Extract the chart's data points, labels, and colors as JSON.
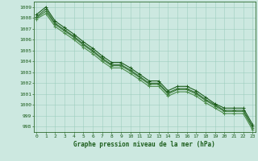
{
  "title": "Graphe pression niveau de la mer (hPa)",
  "hours": [
    0,
    1,
    2,
    3,
    4,
    5,
    6,
    7,
    8,
    9,
    10,
    11,
    12,
    13,
    14,
    15,
    16,
    17,
    18,
    19,
    20,
    21,
    22,
    23
  ],
  "series": [
    [
      1008.1,
      1008.8,
      1007.5,
      1006.9,
      1006.3,
      1005.6,
      1005.0,
      1004.3,
      1003.7,
      1003.7,
      1003.2,
      1002.6,
      1002.0,
      1002.0,
      1001.1,
      1001.5,
      1001.5,
      1001.1,
      1000.5,
      1000.0,
      999.5,
      999.5,
      999.5,
      998.0
    ],
    [
      1008.0,
      1008.6,
      1007.4,
      1006.8,
      1006.2,
      1005.5,
      1004.9,
      1004.2,
      1003.6,
      1003.6,
      1003.1,
      1002.5,
      1001.9,
      1001.9,
      1001.0,
      1001.4,
      1001.4,
      1001.0,
      1000.4,
      999.9,
      999.4,
      999.4,
      999.4,
      997.9
    ],
    [
      1008.3,
      1009.0,
      1007.7,
      1007.1,
      1006.5,
      1005.8,
      1005.2,
      1004.5,
      1003.9,
      1003.9,
      1003.4,
      1002.8,
      1002.2,
      1002.2,
      1001.3,
      1001.7,
      1001.7,
      1001.3,
      1000.7,
      1000.1,
      999.7,
      999.7,
      999.7,
      998.2
    ],
    [
      1007.9,
      1008.4,
      1007.2,
      1006.6,
      1006.0,
      1005.3,
      1004.7,
      1004.0,
      1003.4,
      1003.4,
      1002.9,
      1002.3,
      1001.7,
      1001.7,
      1000.8,
      1001.2,
      1001.2,
      1000.8,
      1000.2,
      999.7,
      999.2,
      999.2,
      999.2,
      997.7
    ]
  ],
  "line_colors": [
    "#2d6a2d",
    "#3a7a3a",
    "#1a5c1a",
    "#4a8c4a"
  ],
  "marker_color": "#1a5c1a",
  "bg_color": "#cce8e0",
  "grid_color": "#99ccbb",
  "text_color": "#1a5c1a",
  "spine_color": "#2d6a2d",
  "ylim": [
    997.5,
    1009.5
  ],
  "yticks": [
    998,
    999,
    1000,
    1001,
    1002,
    1003,
    1004,
    1005,
    1006,
    1007,
    1008,
    1009
  ]
}
